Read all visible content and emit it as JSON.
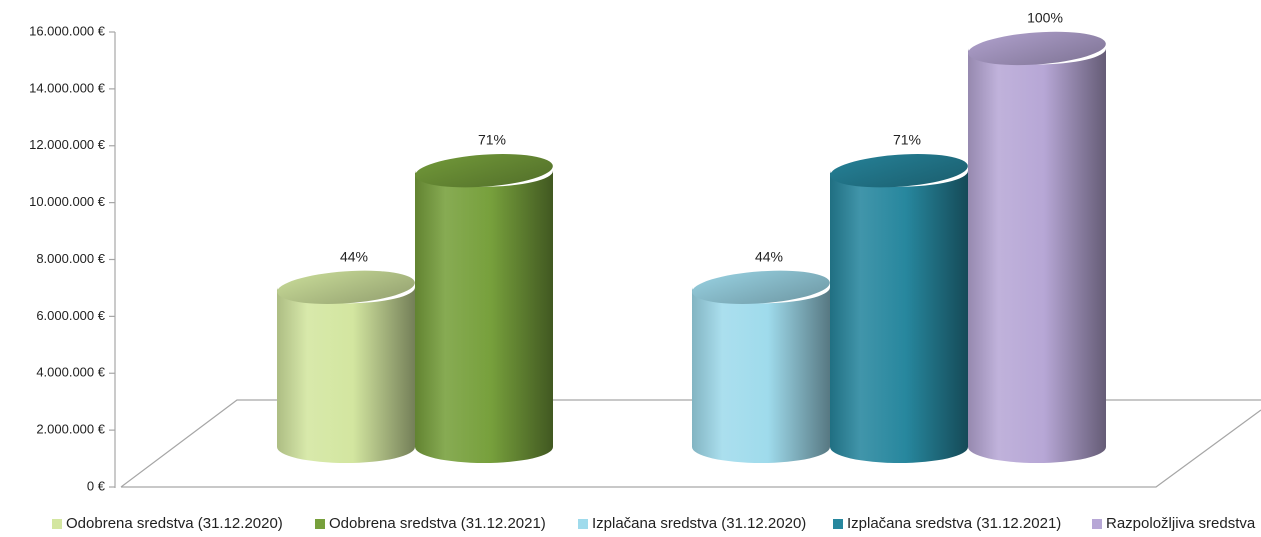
{
  "chart_data": {
    "type": "bar",
    "style": "3d-cylinder",
    "ylim": [
      0,
      16000000
    ],
    "y_ticks": [
      0,
      2000000,
      4000000,
      6000000,
      8000000,
      10000000,
      12000000,
      14000000,
      16000000
    ],
    "y_tick_labels": [
      "0 €",
      "2.000.000 €",
      "4.000.000 €",
      "6.000.000 €",
      "8.000.000 €",
      "10.000.000 €",
      "12.000.000 €",
      "14.000.000 €",
      "16.000.000 €"
    ],
    "groups": [
      {
        "series": [
          0,
          1
        ]
      },
      {
        "series": [
          2,
          3,
          4
        ]
      }
    ],
    "series": [
      {
        "name": "Odobrena sredstva (31.12.2020)",
        "value": 6600000,
        "label": "44%",
        "color": "#d3e6a0"
      },
      {
        "name": "Odobrena sredstva (31.12.2021)",
        "value": 10700000,
        "label": "71%",
        "color": "#77a03c"
      },
      {
        "name": "Izplačana sredstva (31.12.2020)",
        "value": 6600000,
        "label": "44%",
        "color": "#9fdbec"
      },
      {
        "name": "Izplačana sredstva (31.12.2021)",
        "value": 10700000,
        "label": "71%",
        "color": "#27879e"
      },
      {
        "name": "Razpoložljiva sredstva",
        "value": 15000000,
        "label": "100%",
        "color": "#b7a7d6"
      }
    ],
    "legend_position": "bottom",
    "grid": false
  }
}
